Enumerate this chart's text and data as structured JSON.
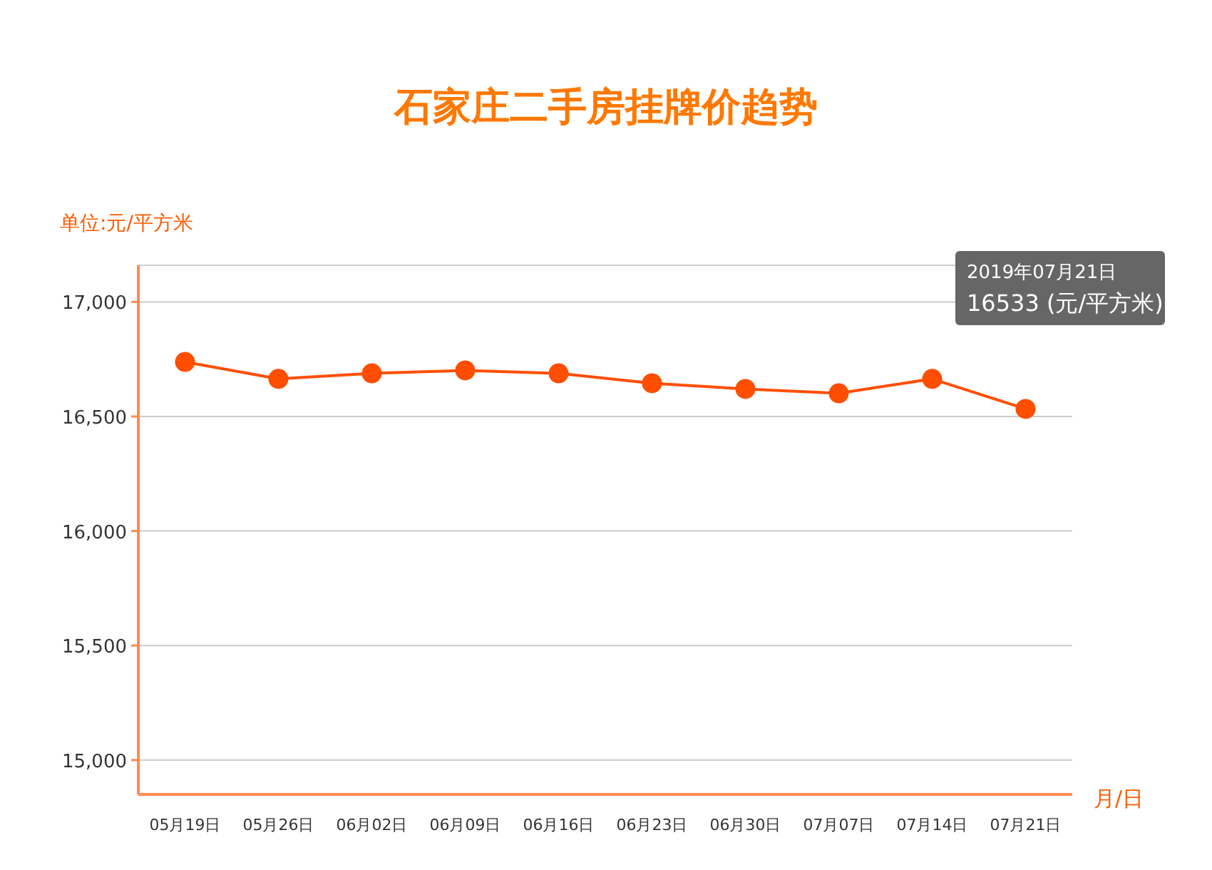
{
  "chart_data": {
    "type": "line",
    "title": "石家庄二手房挂牌价趋势",
    "ylabel": "单位:元/平方米",
    "xlabel": "月/日",
    "categories": [
      "05月19日",
      "05月26日",
      "06月02日",
      "06月09日",
      "06月16日",
      "06月23日",
      "06月30日",
      "07月07日",
      "07月14日",
      "07月21日"
    ],
    "series": [
      {
        "color": "#ff4e00",
        "values": [
          16738,
          16664,
          16688,
          16701,
          16688,
          16645,
          16620,
          16601,
          16664,
          16533
        ]
      }
    ],
    "ylim": [
      14850,
      17160
    ],
    "yticks": [
      {
        "value": 15000,
        "label": "15,000"
      },
      {
        "value": 15500,
        "label": "15,500"
      },
      {
        "value": 16000,
        "label": "16,000"
      },
      {
        "value": 16500,
        "label": "16,500"
      },
      {
        "value": 17000,
        "label": "17,000"
      }
    ],
    "grid": "y",
    "marker": "circle",
    "line_style": "solid",
    "annotations": [
      "2019年07月21日",
      "16533 (元/平方米)"
    ]
  }
}
